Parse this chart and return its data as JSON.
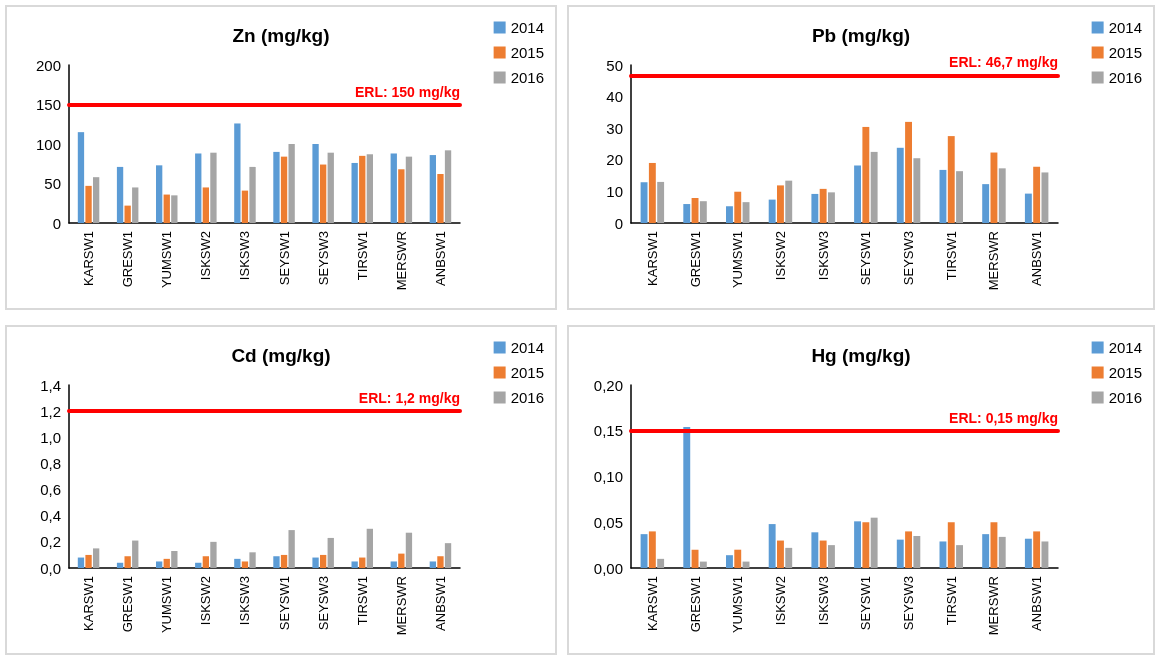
{
  "chart_data": [
    {
      "type": "bar",
      "title": "Zn (mg/kg)",
      "categories": [
        "KARSW1",
        "GRESW1",
        "YUMSW1",
        "ISKSW2",
        "ISKSW3",
        "SEYSW1",
        "SEYSW3",
        "TIRSW1",
        "MERSWR",
        "ANBSW1"
      ],
      "series": [
        {
          "name": "2014",
          "color": "#5b9bd5",
          "values": [
            115,
            71,
            73,
            88,
            126,
            90,
            100,
            76,
            88,
            86
          ]
        },
        {
          "name": "2015",
          "color": "#ed7d31",
          "values": [
            47,
            22,
            36,
            45,
            41,
            84,
            74,
            85,
            68,
            62
          ]
        },
        {
          "name": "2016",
          "color": "#a5a5a5",
          "values": [
            58,
            45,
            35,
            89,
            71,
            100,
            89,
            87,
            84,
            92
          ]
        }
      ],
      "ylim": [
        0,
        200
      ],
      "yticks": [
        0,
        50,
        100,
        150,
        200
      ],
      "legend": "top right",
      "ref_lines": [
        {
          "axis": "y",
          "value": 150,
          "label": "ERL: 150 mg/kg",
          "color": "#ff0000"
        }
      ]
    },
    {
      "type": "bar",
      "title": "Pb (mg/kg)",
      "categories": [
        "KARSW1",
        "GRESW1",
        "YUMSW1",
        "ISKSW2",
        "ISKSW3",
        "SEYSW1",
        "SEYSW3",
        "TIRSW1",
        "MERSWR",
        "ANBSW1"
      ],
      "series": [
        {
          "name": "2014",
          "color": "#5b9bd5",
          "values": [
            12.9,
            6,
            5.3,
            7.4,
            9.2,
            18.2,
            23.8,
            16.8,
            12.3,
            9.3
          ]
        },
        {
          "name": "2015",
          "color": "#ed7d31",
          "values": [
            19,
            7.9,
            9.9,
            11.9,
            10.8,
            30.4,
            32,
            27.5,
            22.3,
            17.8
          ]
        },
        {
          "name": "2016",
          "color": "#a5a5a5",
          "values": [
            13,
            6.9,
            6.6,
            13.4,
            9.7,
            22.5,
            20.5,
            16.4,
            17.3,
            16
          ]
        }
      ],
      "ylim": [
        0,
        50
      ],
      "yticks": [
        0,
        10,
        20,
        30,
        40,
        50
      ],
      "legend": "top right",
      "ref_lines": [
        {
          "axis": "y",
          "value": 46.7,
          "label": "ERL: 46,7 mg/kg",
          "color": "#ff0000"
        }
      ]
    },
    {
      "type": "bar",
      "title": "Cd (mg/kg)",
      "categories": [
        "KARSW1",
        "GRESW1",
        "YUMSW1",
        "ISKSW2",
        "ISKSW3",
        "SEYSW1",
        "SEYSW3",
        "TIRSW1",
        "MERSWR",
        "ANBSW1"
      ],
      "series": [
        {
          "name": "2014",
          "color": "#5b9bd5",
          "values": [
            0.08,
            0.04,
            0.05,
            0.04,
            0.07,
            0.09,
            0.08,
            0.05,
            0.05,
            0.05
          ]
        },
        {
          "name": "2015",
          "color": "#ed7d31",
          "values": [
            0.1,
            0.09,
            0.07,
            0.09,
            0.05,
            0.1,
            0.1,
            0.08,
            0.11,
            0.09
          ]
        },
        {
          "name": "2016",
          "color": "#a5a5a5",
          "values": [
            0.15,
            0.21,
            0.13,
            0.2,
            0.12,
            0.29,
            0.23,
            0.3,
            0.27,
            0.19
          ]
        }
      ],
      "ylim": [
        0,
        1.4
      ],
      "yticks": [
        {
          "value": 0,
          "label": "0,0"
        },
        {
          "value": 0.2,
          "label": "0,2"
        },
        {
          "value": 0.4,
          "label": "0,4"
        },
        {
          "value": 0.6,
          "label": "0,6"
        },
        {
          "value": 0.8,
          "label": "0,8"
        },
        {
          "value": 1.0,
          "label": "1,0"
        },
        {
          "value": 1.2,
          "label": "1,2"
        },
        {
          "value": 1.4,
          "label": "1,4"
        }
      ],
      "legend": "top right",
      "ref_lines": [
        {
          "axis": "y",
          "value": 1.2,
          "label": "ERL: 1,2 mg/kg",
          "color": "#ff0000"
        }
      ]
    },
    {
      "type": "bar",
      "title": "Hg (mg/kg)",
      "categories": [
        "KARSW1",
        "GRESW1",
        "YUMSW1",
        "ISKSW2",
        "ISKSW3",
        "SEYSW1",
        "SEYSW3",
        "TIRSW1",
        "MERSWR",
        "ANBSW1"
      ],
      "series": [
        {
          "name": "2014",
          "color": "#5b9bd5",
          "values": [
            0.037,
            0.154,
            0.014,
            0.048,
            0.039,
            0.051,
            0.031,
            0.029,
            0.037,
            0.032
          ]
        },
        {
          "name": "2015",
          "color": "#ed7d31",
          "values": [
            0.04,
            0.02,
            0.02,
            0.03,
            0.03,
            0.05,
            0.04,
            0.05,
            0.05,
            0.04
          ]
        },
        {
          "name": "2016",
          "color": "#a5a5a5",
          "values": [
            0.01,
            0.007,
            0.007,
            0.022,
            0.025,
            0.055,
            0.035,
            0.025,
            0.034,
            0.029
          ]
        }
      ],
      "ylim": [
        0,
        0.2
      ],
      "yticks": [
        {
          "value": 0,
          "label": "0,00"
        },
        {
          "value": 0.05,
          "label": "0,05"
        },
        {
          "value": 0.1,
          "label": "0,10"
        },
        {
          "value": 0.15,
          "label": "0,15"
        },
        {
          "value": 0.2,
          "label": "0,20"
        }
      ],
      "legend": "top right",
      "ref_lines": [
        {
          "axis": "y",
          "value": 0.15,
          "label": "ERL: 0,15 mg/kg",
          "color": "#ff0000"
        }
      ]
    }
  ]
}
